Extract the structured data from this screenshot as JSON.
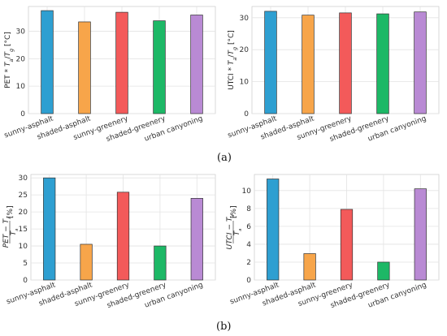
{
  "figure": {
    "subcaptions": [
      "(a)",
      "(b)"
    ]
  },
  "colors": [
    "#2e9fd1",
    "#f7a54a",
    "#f35a5a",
    "#1db866",
    "#b98ad4"
  ],
  "chart_data": [
    {
      "type": "bar",
      "categories": [
        "sunny-asphalt",
        "shaded-asphalt",
        "sunny-greenery",
        "shaded-greenery",
        "urban canyoning"
      ],
      "values": [
        37.5,
        33.4,
        36.9,
        33.8,
        35.9
      ],
      "ylabel": "PET * T_a/T_g [°C]",
      "ylim": [
        0,
        39
      ],
      "yticks": [
        0,
        10,
        20,
        30
      ],
      "grid": true
    },
    {
      "type": "bar",
      "categories": [
        "sunny-asphalt",
        "shaded-asphalt",
        "sunny-greenery",
        "shaded-greenery",
        "urban canyoning"
      ],
      "values": [
        32.0,
        30.8,
        31.5,
        31.2,
        31.8
      ],
      "ylabel": "UTCI * T_a/T_g [°C]",
      "ylim": [
        0,
        33.5
      ],
      "yticks": [
        0,
        10,
        20,
        30
      ],
      "grid": true
    },
    {
      "type": "bar",
      "categories": [
        "sunny-asphalt",
        "shaded-asphalt",
        "sunny-greenery",
        "shaded-greenery",
        "urban canyoning"
      ],
      "values": [
        30.0,
        10.5,
        25.8,
        10.0,
        24.0
      ],
      "ylabel": "(PET − T_a)/T_a [%]",
      "ylim": [
        0,
        31
      ],
      "yticks": [
        0,
        5,
        10,
        15,
        20,
        25,
        30
      ],
      "grid": true
    },
    {
      "type": "bar",
      "categories": [
        "sunny-asphalt",
        "shaded-asphalt",
        "sunny-greenery",
        "shaded-greenery",
        "urban canyoning"
      ],
      "values": [
        11.3,
        2.95,
        7.9,
        2.0,
        10.2
      ],
      "ylabel": "(UTCI − T_a)/T_a [%]",
      "ylim": [
        0,
        11.8
      ],
      "yticks": [
        0,
        2,
        4,
        6,
        8,
        10
      ],
      "grid": true
    }
  ]
}
